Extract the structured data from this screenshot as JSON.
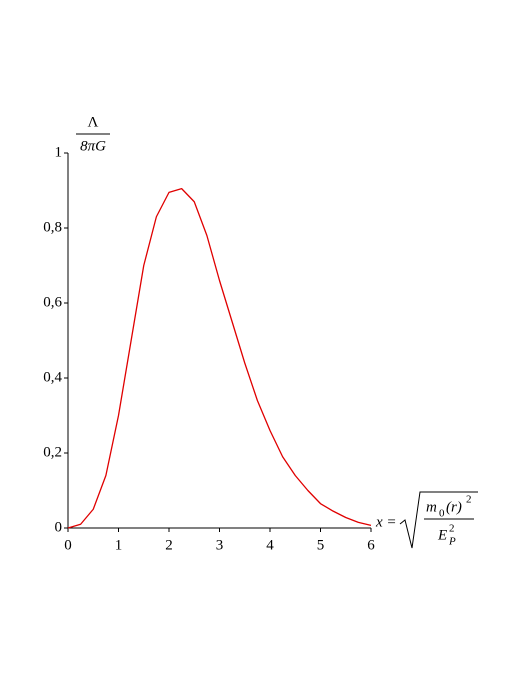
{
  "chart_data": {
    "type": "line",
    "y_label": {
      "numerator": "Λ",
      "denominator": "8πG"
    },
    "x_label": {
      "variable": "x =",
      "numerator": "m",
      "numerator_sub": "0",
      "numerator_rest": "(r)",
      "numerator_sup": "2",
      "denominator": "E",
      "denominator_sub": "P",
      "denominator_sup": "2"
    },
    "x": [
      0,
      0.25,
      0.5,
      0.75,
      1,
      1.25,
      1.5,
      1.75,
      2,
      2.25,
      2.5,
      2.75,
      3,
      3.25,
      3.5,
      3.75,
      4,
      4.25,
      4.5,
      4.75,
      5,
      5.25,
      5.5,
      5.75,
      6
    ],
    "series": [
      {
        "color": "#e00000",
        "values": [
          0,
          0.01,
          0.05,
          0.14,
          0.3,
          0.5,
          0.7,
          0.83,
          0.895,
          0.905,
          0.87,
          0.78,
          0.66,
          0.55,
          0.44,
          0.34,
          0.26,
          0.19,
          0.14,
          0.1,
          0.065,
          0.045,
          0.028,
          0.015,
          0.007
        ]
      }
    ],
    "xlim": [
      0,
      6
    ],
    "xticks": [
      0,
      1,
      2,
      3,
      4,
      5,
      6
    ],
    "ylim": [
      0,
      1
    ],
    "yticks": [
      0,
      {
        "value": 0.2,
        "label": "0,2"
      },
      {
        "value": 0.4,
        "label": "0,4"
      },
      {
        "value": 0.6,
        "label": "0,6"
      },
      {
        "value": 0.8,
        "label": "0,8"
      },
      1
    ]
  }
}
